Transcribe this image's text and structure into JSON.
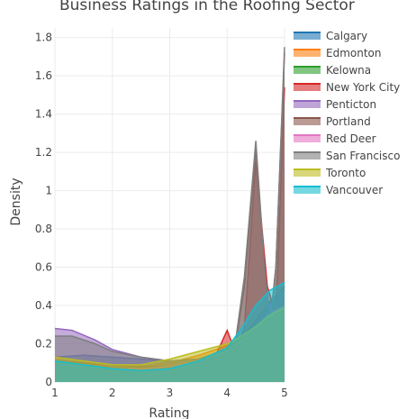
{
  "chart_data": {
    "type": "area",
    "title": "Business Ratings in the Roofing Sector",
    "xlabel": "Rating",
    "ylabel": "Density",
    "xlim": [
      1,
      5
    ],
    "ylim": [
      0,
      1.85
    ],
    "xticks": [
      "1",
      "2",
      "3",
      "4",
      "5"
    ],
    "yticks": [
      "0",
      "0.2",
      "0.4",
      "0.6",
      "0.8",
      "1",
      "1.2",
      "1.4",
      "1.6",
      "1.8"
    ],
    "grid": true,
    "legend_position": "top-right",
    "series": [
      {
        "name": "Calgary",
        "color": "#1f77b4",
        "x": [
          1,
          1.5,
          2,
          2.5,
          3,
          3.5,
          4,
          4.25,
          4.5,
          4.75,
          5
        ],
        "y": [
          0.13,
          0.14,
          0.13,
          0.12,
          0.11,
          0.12,
          0.17,
          0.23,
          0.32,
          0.42,
          0.5
        ]
      },
      {
        "name": "Edmonton",
        "color": "#ff7f0e",
        "x": [
          1,
          1.5,
          2,
          2.5,
          3,
          3.5,
          4,
          4.25,
          4.5,
          4.75,
          5
        ],
        "y": [
          0.12,
          0.1,
          0.08,
          0.08,
          0.1,
          0.14,
          0.19,
          0.22,
          0.28,
          0.34,
          0.39
        ]
      },
      {
        "name": "Kelowna",
        "color": "#2ca02c",
        "x": [
          1,
          1.5,
          2,
          2.5,
          3,
          3.5,
          4,
          4.25,
          4.5,
          4.75,
          5
        ],
        "y": [
          0.1,
          0.08,
          0.06,
          0.05,
          0.06,
          0.09,
          0.14,
          0.2,
          0.27,
          0.34,
          0.39
        ]
      },
      {
        "name": "New York City",
        "color": "#d62728",
        "x": [
          1,
          1.5,
          2,
          2.5,
          3,
          3.5,
          3.8,
          4,
          4.15,
          4.3,
          4.5,
          4.7,
          4.85,
          5
        ],
        "y": [
          0.1,
          0.08,
          0.06,
          0.06,
          0.08,
          0.1,
          0.14,
          0.27,
          0.15,
          0.28,
          1.15,
          0.5,
          0.35,
          1.54
        ]
      },
      {
        "name": "Penticton",
        "color": "#9467bd",
        "x": [
          1,
          1.3,
          1.7,
          2,
          2.5,
          3,
          3.5,
          4,
          4.25,
          4.5,
          4.75,
          5
        ],
        "y": [
          0.28,
          0.27,
          0.22,
          0.17,
          0.13,
          0.11,
          0.12,
          0.16,
          0.22,
          0.3,
          0.4,
          0.48
        ]
      },
      {
        "name": "Portland",
        "color": "#8c564b",
        "x": [
          1,
          1.5,
          2,
          2.5,
          3,
          3.5,
          4,
          4.15,
          4.3,
          4.5,
          4.65,
          4.75,
          4.85,
          5
        ],
        "y": [
          0.11,
          0.1,
          0.09,
          0.08,
          0.08,
          0.1,
          0.15,
          0.2,
          0.5,
          1.22,
          0.6,
          0.3,
          0.6,
          1.72
        ]
      },
      {
        "name": "Red Deer",
        "color": "#e377c2",
        "x": [
          1,
          1.5,
          2,
          2.5,
          3,
          3.5,
          4,
          4.25,
          4.5,
          4.75,
          5
        ],
        "y": [
          0.1,
          0.08,
          0.07,
          0.07,
          0.08,
          0.11,
          0.16,
          0.22,
          0.29,
          0.36,
          0.4
        ]
      },
      {
        "name": "San Francisco",
        "color": "#7f7f7f",
        "x": [
          1,
          1.3,
          1.7,
          2,
          2.5,
          3,
          3.5,
          4,
          4.15,
          4.3,
          4.5,
          4.65,
          4.75,
          4.85,
          5
        ],
        "y": [
          0.24,
          0.24,
          0.2,
          0.16,
          0.13,
          0.11,
          0.12,
          0.17,
          0.22,
          0.55,
          1.26,
          0.6,
          0.32,
          0.6,
          1.75
        ]
      },
      {
        "name": "Toronto",
        "color": "#bcbd22",
        "x": [
          1,
          1.5,
          2,
          2.5,
          3,
          3.5,
          4,
          4.25,
          4.5,
          4.75,
          5
        ],
        "y": [
          0.13,
          0.11,
          0.09,
          0.09,
          0.12,
          0.16,
          0.2,
          0.24,
          0.29,
          0.35,
          0.39
        ]
      },
      {
        "name": "Vancouver",
        "color": "#17becf",
        "x": [
          1,
          1.5,
          2,
          2.5,
          3,
          3.5,
          4,
          4.25,
          4.5,
          4.75,
          5
        ],
        "y": [
          0.11,
          0.09,
          0.07,
          0.06,
          0.07,
          0.11,
          0.18,
          0.28,
          0.4,
          0.48,
          0.52
        ]
      }
    ]
  }
}
